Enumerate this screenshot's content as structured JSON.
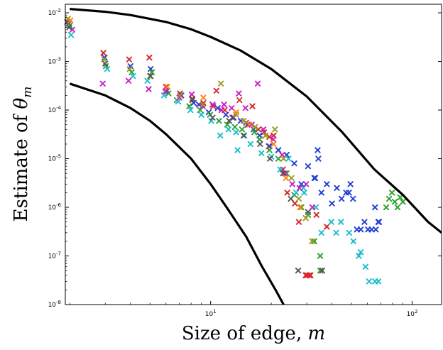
{
  "chart_data": {
    "type": "scatter",
    "title": "",
    "xlabel": "Size of edge, ",
    "xlabel_var": "m",
    "ylabel": "Estimate of ",
    "ylabel_var": "θ",
    "ylabel_sub": "m",
    "x_scale": "log",
    "y_scale": "log",
    "xlim": [
      1.9,
      140
    ],
    "ylim": [
      1e-08,
      0.015
    ],
    "grid": false,
    "legend": "none",
    "x_ticks": [
      {
        "value": 10,
        "base": "10",
        "exp": "1"
      },
      {
        "value": 100,
        "base": "10",
        "exp": "2"
      }
    ],
    "y_ticks": [
      {
        "value": 0.01,
        "base": "10",
        "exp": "-2"
      },
      {
        "value": 0.001,
        "base": "10",
        "exp": "-3"
      },
      {
        "value": 0.0001,
        "base": "10",
        "exp": "-4"
      },
      {
        "value": 1e-05,
        "base": "10",
        "exp": "-5"
      },
      {
        "value": 1e-06,
        "base": "10",
        "exp": "-6"
      },
      {
        "value": 1e-07,
        "base": "10",
        "exp": "-7"
      },
      {
        "value": 1e-08,
        "base": "10",
        "exp": "-8"
      }
    ],
    "bounds": [
      {
        "x": [
          2.0,
          3.0,
          4.0,
          6.0,
          8.0,
          10.0,
          14.0,
          20.0,
          30.0,
          45.0,
          65.0,
          90.0,
          120.0,
          140.0
        ],
        "y": [
          0.012,
          0.0105,
          0.009,
          0.0065,
          0.0046,
          0.0032,
          0.0017,
          0.0007,
          0.00019,
          3.5e-05,
          6e-06,
          1.8e-06,
          5e-07,
          3e-07
        ]
      },
      {
        "x": [
          2.0,
          3.0,
          4.0,
          5.0,
          6.0,
          8.0,
          10.0,
          12.0,
          15.0,
          18.0,
          21.0,
          23.0,
          24.0
        ],
        "y": [
          0.00035,
          0.0002,
          0.00011,
          6e-05,
          3.2e-05,
          1e-05,
          3e-06,
          1e-06,
          2.5e-07,
          6e-08,
          2e-08,
          1e-08,
          7e-09
        ]
      }
    ],
    "series": [
      {
        "color": "#d62728",
        "points": [
          [
            2,
            0.0065
          ],
          [
            3,
            0.0015
          ],
          [
            4,
            0.0011
          ],
          [
            5,
            0.0012
          ],
          [
            6,
            0.0003
          ],
          [
            7,
            0.00022
          ],
          [
            8,
            0.00016
          ],
          [
            9,
            0.00014
          ],
          [
            10,
            0.00012
          ],
          [
            11,
            0.00025
          ],
          [
            12,
            0.0001
          ],
          [
            13,
            7e-05
          ],
          [
            14,
            0.00016
          ],
          [
            15,
            5.5e-05
          ],
          [
            16,
            0.00012
          ],
          [
            17,
            4e-05
          ],
          [
            18,
            3.5e-05
          ],
          [
            19,
            2.8e-05
          ],
          [
            20,
            1.8e-05
          ],
          [
            21,
            3e-05
          ],
          [
            22,
            1.5e-05
          ],
          [
            23,
            6e-06
          ],
          [
            24,
            2e-06
          ],
          [
            26,
            1.2e-06
          ],
          [
            27,
            5e-07
          ],
          [
            29,
            4e-08
          ],
          [
            30,
            4e-08
          ],
          [
            31,
            4e-08
          ],
          [
            32,
            4e-08
          ],
          [
            34,
            7e-07
          ],
          [
            38,
            4e-07
          ]
        ]
      },
      {
        "color": "#1f3fd6",
        "points": [
          [
            2,
            0.006
          ],
          [
            3,
            0.0012
          ],
          [
            4,
            0.0008
          ],
          [
            5,
            0.0007
          ],
          [
            6,
            0.00025
          ],
          [
            7,
            0.0002
          ],
          [
            8,
            0.00014
          ],
          [
            9,
            0.00013
          ],
          [
            10,
            9e-05
          ],
          [
            11,
            0.00011
          ],
          [
            12,
            8e-05
          ],
          [
            13,
            7e-05
          ],
          [
            14,
            6e-05
          ],
          [
            15,
            5e-05
          ],
          [
            16,
            4e-05
          ],
          [
            17,
            3e-05
          ],
          [
            18,
            2.5e-05
          ],
          [
            20,
            1.8e-05
          ],
          [
            22,
            1.5e-05
          ],
          [
            24,
            1.2e-05
          ],
          [
            26,
            8e-06
          ],
          [
            28,
            3e-06
          ],
          [
            30,
            7e-06
          ],
          [
            32,
            4e-06
          ],
          [
            33,
            1.5e-05
          ],
          [
            34,
            4e-06
          ],
          [
            35,
            1e-05
          ],
          [
            36,
            2e-06
          ],
          [
            38,
            3e-06
          ],
          [
            40,
            1.2e-06
          ],
          [
            42,
            2.5e-06
          ],
          [
            44,
            1.5e-06
          ],
          [
            46,
            2e-06
          ],
          [
            48,
            3e-06
          ],
          [
            50,
            2e-06
          ],
          [
            52,
            1.5e-06
          ],
          [
            54,
            3.5e-07
          ],
          [
            56,
            3.5e-07
          ],
          [
            58,
            5e-07
          ],
          [
            60,
            3.5e-07
          ],
          [
            62,
            3.5e-07
          ],
          [
            64,
            1e-06
          ],
          [
            66,
            5e-07
          ],
          [
            68,
            3.5e-07
          ],
          [
            70,
            5e-07
          ]
        ]
      },
      {
        "color": "#2ca02c",
        "points": [
          [
            2,
            0.0055
          ],
          [
            3,
            0.0008
          ],
          [
            4,
            0.0006
          ],
          [
            5,
            0.0006
          ],
          [
            6,
            0.00022
          ],
          [
            7,
            0.00016
          ],
          [
            8,
            0.00012
          ],
          [
            9,
            0.0001
          ],
          [
            10,
            8e-05
          ],
          [
            11,
            6e-05
          ],
          [
            12,
            5e-05
          ],
          [
            13,
            4.5e-05
          ],
          [
            14,
            4e-05
          ],
          [
            16,
            3.5e-05
          ],
          [
            18,
            2.5e-05
          ],
          [
            20,
            1.5e-05
          ],
          [
            22,
            1e-05
          ],
          [
            24,
            5e-06
          ],
          [
            26,
            1.8e-06
          ],
          [
            28,
            1e-06
          ],
          [
            30,
            7e-07
          ],
          [
            32,
            2e-07
          ],
          [
            34,
            5e-08
          ],
          [
            36,
            1e-07
          ],
          [
            76,
            1e-06
          ],
          [
            78,
            1.5e-06
          ],
          [
            80,
            2e-06
          ],
          [
            82,
            1.3e-06
          ],
          [
            84,
            1e-06
          ],
          [
            86,
            1.6e-06
          ],
          [
            88,
            1.3e-06
          ]
        ]
      },
      {
        "color": "#17becf",
        "points": [
          [
            2,
            0.0035
          ],
          [
            3,
            0.0007
          ],
          [
            4,
            0.0005
          ],
          [
            5,
            0.0004
          ],
          [
            6,
            0.0002
          ],
          [
            7,
            0.00015
          ],
          [
            8,
            0.0001
          ],
          [
            9,
            8e-05
          ],
          [
            10,
            6e-05
          ],
          [
            11,
            3e-05
          ],
          [
            12,
            4e-05
          ],
          [
            13,
            3.5e-05
          ],
          [
            14,
            1.5e-05
          ],
          [
            15,
            3e-05
          ],
          [
            16,
            2e-05
          ],
          [
            18,
            1.3e-05
          ],
          [
            20,
            1.1e-05
          ],
          [
            22,
            6e-06
          ],
          [
            24,
            1e-05
          ],
          [
            26,
            2e-06
          ],
          [
            28,
            2.5e-06
          ],
          [
            30,
            2e-06
          ],
          [
            34,
            1e-06
          ],
          [
            36,
            3e-07
          ],
          [
            40,
            5e-07
          ],
          [
            42,
            3e-07
          ],
          [
            44,
            5e-07
          ],
          [
            48,
            3e-07
          ],
          [
            50,
            2e-07
          ],
          [
            54,
            1.2e-07
          ],
          [
            56,
            1e-07
          ],
          [
            60,
            6e-08
          ],
          [
            62,
            3e-08
          ],
          [
            66,
            3e-08
          ],
          [
            68,
            3e-08
          ]
        ]
      },
      {
        "color": "#c71fc7",
        "points": [
          [
            2,
            0.0045
          ],
          [
            3,
            0.00035
          ],
          [
            4,
            0.0004
          ],
          [
            5,
            0.00027
          ],
          [
            6,
            0.00024
          ],
          [
            7,
            0.00018
          ],
          [
            8,
            0.00021
          ],
          [
            9,
            0.00012
          ],
          [
            10,
            0.00013
          ],
          [
            11,
            0.0001
          ],
          [
            12,
            0.00013
          ],
          [
            13,
            0.00011
          ],
          [
            14,
            0.00022
          ],
          [
            15,
            0.00011
          ],
          [
            16,
            5e-05
          ],
          [
            17,
            0.00035
          ],
          [
            18,
            4e-05
          ],
          [
            20,
            2.5e-05
          ],
          [
            22,
            1.2e-05
          ],
          [
            24,
            5e-06
          ],
          [
            26,
            3e-06
          ],
          [
            28,
            2.5e-06
          ],
          [
            30,
            3e-06
          ],
          [
            32,
            1e-06
          ]
        ]
      },
      {
        "color": "#9a9a1f",
        "points": [
          [
            2,
            0.0075
          ],
          [
            3,
            0.0011
          ],
          [
            4,
            0.0007
          ],
          [
            5,
            0.0005
          ],
          [
            7,
            0.0002
          ],
          [
            9,
            0.00013
          ],
          [
            11,
            0.00035
          ],
          [
            13,
            8e-05
          ],
          [
            15,
            6e-05
          ],
          [
            17,
            4.5e-05
          ],
          [
            19,
            3e-05
          ],
          [
            21,
            4e-05
          ],
          [
            23,
            1e-05
          ],
          [
            25,
            4e-06
          ],
          [
            27,
            1.5e-06
          ],
          [
            29,
            6e-07
          ],
          [
            31,
            2e-07
          ]
        ]
      },
      {
        "color": "#555555",
        "points": [
          [
            2,
            0.005
          ],
          [
            3,
            0.0009
          ],
          [
            5,
            0.0005
          ],
          [
            8,
            0.00017
          ],
          [
            10,
            7e-05
          ],
          [
            12,
            6e-05
          ],
          [
            15,
            3e-05
          ],
          [
            18,
            2e-05
          ],
          [
            20,
            1e-05
          ],
          [
            23,
            5e-06
          ],
          [
            25,
            1.5e-06
          ],
          [
            27,
            5e-08
          ],
          [
            30,
            8e-07
          ],
          [
            35,
            5e-08
          ]
        ]
      },
      {
        "color": "#ff7f0e",
        "points": [
          [
            2,
            0.007
          ],
          [
            6,
            0.0003
          ],
          [
            9,
            0.00018
          ],
          [
            13,
            9e-05
          ],
          [
            16,
            5e-05
          ],
          [
            21,
            2e-05
          ],
          [
            24,
            4e-06
          ],
          [
            28,
            1e-06
          ]
        ]
      }
    ]
  }
}
